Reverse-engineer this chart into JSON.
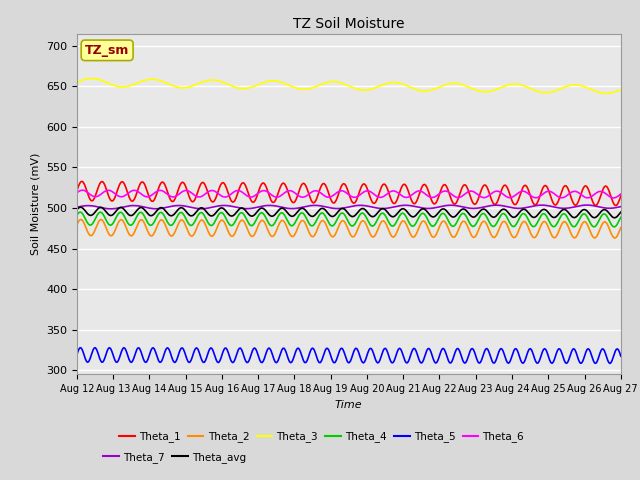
{
  "title": "TZ Soil Moisture",
  "ylabel": "Soil Moisture (mV)",
  "xlabel": "Time",
  "n_points": 500,
  "date_labels": [
    "Aug 12",
    "Aug 13",
    "Aug 14",
    "Aug 15",
    "Aug 16",
    "Aug 17",
    "Aug 18",
    "Aug 19",
    "Aug 20",
    "Aug 21",
    "Aug 22",
    "Aug 23",
    "Aug 24",
    "Aug 25",
    "Aug 26",
    "Aug 27"
  ],
  "ylim": [
    295,
    715
  ],
  "yticks": [
    300,
    350,
    400,
    450,
    500,
    550,
    600,
    650,
    700
  ],
  "background_color": "#e8e8e8",
  "fig_color": "#d9d9d9",
  "grid_color": "white",
  "series": [
    {
      "name": "Theta_1",
      "color": "#ff0000",
      "base": 521,
      "amp": 12,
      "freq": 1.8,
      "trend": -0.4,
      "phase": 0.0
    },
    {
      "name": "Theta_2",
      "color": "#ff8c00",
      "base": 476,
      "amp": 10,
      "freq": 1.8,
      "trend": -0.2,
      "phase": 0.3
    },
    {
      "name": "Theta_3",
      "color": "#ffff00",
      "base": 655,
      "amp": 5,
      "freq": 0.6,
      "trend": -0.6,
      "phase": 0.0
    },
    {
      "name": "Theta_4",
      "color": "#00cc00",
      "base": 487,
      "amp": 8,
      "freq": 1.8,
      "trend": -0.15,
      "phase": 0.5
    },
    {
      "name": "Theta_5",
      "color": "#0000ff",
      "base": 319,
      "amp": 9,
      "freq": 2.5,
      "trend": -0.1,
      "phase": 0.0
    },
    {
      "name": "Theta_6",
      "color": "#ff00ff",
      "base": 518,
      "amp": 4,
      "freq": 1.4,
      "trend": -0.1,
      "phase": 0.2
    },
    {
      "name": "Theta_7",
      "color": "#9900cc",
      "base": 501,
      "amp": 2,
      "freq": 0.8,
      "trend": 0.05,
      "phase": 0.0
    },
    {
      "name": "Theta_avg",
      "color": "#000000",
      "base": 496,
      "amp": 5,
      "freq": 1.8,
      "trend": -0.2,
      "phase": 0.4
    }
  ],
  "label_box": {
    "text": "TZ_sm",
    "bg": "#ffff99",
    "edge": "#aaaa00",
    "text_color": "#990000",
    "fontsize": 9
  },
  "legend_rows": [
    [
      "Theta_1",
      "Theta_2",
      "Theta_3",
      "Theta_4",
      "Theta_5",
      "Theta_6"
    ],
    [
      "Theta_7",
      "Theta_avg"
    ]
  ]
}
